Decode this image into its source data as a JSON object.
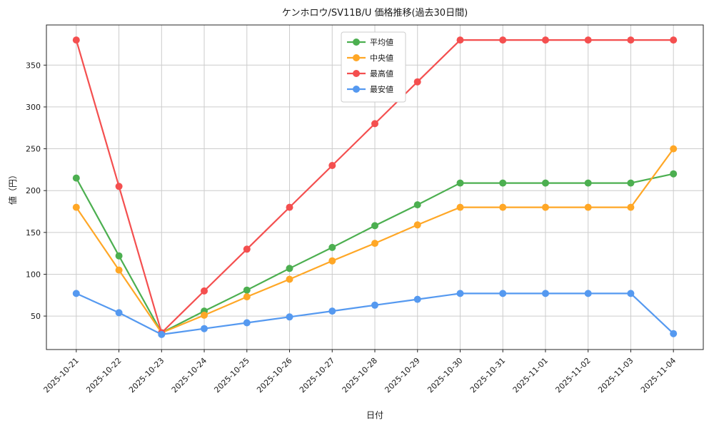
{
  "chart_data": {
    "type": "line",
    "title": "ケンホロウ/SV11B/U 価格推移(過去30日間)",
    "xlabel": "日付",
    "ylabel": "値（円）",
    "x": [
      "2025-10-21",
      "2025-10-22",
      "2025-10-23",
      "2025-10-24",
      "2025-10-25",
      "2025-10-26",
      "2025-10-27",
      "2025-10-28",
      "2025-10-29",
      "2025-10-30",
      "2025-10-31",
      "2025-11-01",
      "2025-11-02",
      "2025-11-03",
      "2025-11-04"
    ],
    "series": [
      {
        "name": "平均値",
        "color": "#4caf50",
        "values": [
          215,
          122,
          30,
          56,
          81,
          107,
          132,
          158,
          183,
          209,
          209,
          209,
          209,
          209,
          220
        ]
      },
      {
        "name": "中央値",
        "color": "#ffa726",
        "values": [
          180,
          105,
          30,
          51,
          73,
          94,
          116,
          137,
          159,
          180,
          180,
          180,
          180,
          180,
          250
        ]
      },
      {
        "name": "最高値",
        "color": "#f44f4f",
        "values": [
          380,
          205,
          30,
          80,
          130,
          180,
          230,
          280,
          330,
          380,
          380,
          380,
          380,
          380,
          380
        ]
      },
      {
        "name": "最安値",
        "color": "#5599f0",
        "values": [
          77,
          54,
          28,
          35,
          42,
          49,
          56,
          63,
          70,
          77,
          77,
          77,
          77,
          77,
          29
        ]
      }
    ],
    "yticks": [
      50,
      100,
      150,
      200,
      250,
      300,
      350
    ],
    "ylim": [
      10,
      398
    ],
    "grid": true,
    "legend_position": "upper center-left",
    "plot_background": "#ffffff",
    "grid_color": "#cccccc"
  }
}
